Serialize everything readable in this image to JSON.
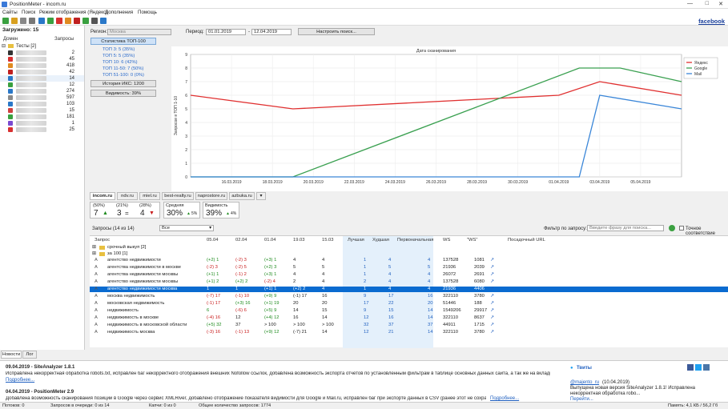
{
  "window": {
    "title": "PositionMeter - incom.ru"
  },
  "menu": [
    "Сайты",
    "Поиск",
    "Режим отображения (Яндекс)",
    "Дополнения",
    "Помощь"
  ],
  "facebook_link": "facebook",
  "left": {
    "header": "Загружено: 15",
    "col_domain": "Домен",
    "col_queries": "Запросы",
    "group": "Тесты [2]",
    "rows": [
      {
        "count": "2",
        "color": "#333333"
      },
      {
        "count": "45",
        "color": "#d83030"
      },
      {
        "count": "418",
        "color": "#e08a20"
      },
      {
        "count": "42",
        "color": "#c02020"
      },
      {
        "count": "14",
        "color": "#2a78c8"
      },
      {
        "count": "12",
        "color": "#3aa040"
      },
      {
        "count": "274",
        "color": "#2a78c8"
      },
      {
        "count": "597",
        "color": "#8a8a8a"
      },
      {
        "count": "103",
        "color": "#2a78c8"
      },
      {
        "count": "15",
        "color": "#d04040"
      },
      {
        "count": "181",
        "color": "#3aa040"
      },
      {
        "count": "1",
        "color": "#7a4ad0"
      },
      {
        "count": "25",
        "color": "#d83030"
      }
    ]
  },
  "filters": {
    "region_label": "Регион:",
    "region_value": "Москва",
    "period_label": "Период:",
    "date_from": "01.01.2019",
    "date_to": "12.04.2019",
    "setup_button": "Настроить поиск..."
  },
  "stats": {
    "top100_button": "Статистика ТОП-100",
    "lines": [
      "ТОП 3: 5 (35%)",
      "ТОП 5: 5 (35%)",
      "ТОП 10: 6 (42%)",
      "ТОП 11-50: 7 (50%)",
      "ТОП 51-100: 0 (0%)"
    ],
    "iks_button": "История ИКС: 1200",
    "visibility_button": "Видимость: 39%"
  },
  "chart_data": {
    "type": "line",
    "title": "Дата сканирования",
    "ylabel": "Запросов в ТОП 1-10",
    "ylim": [
      0,
      9
    ],
    "yticks": [
      0,
      1,
      2,
      3,
      4,
      5,
      6,
      7,
      8,
      9
    ],
    "categories": [
      "16.03.2019",
      "18.03.2019",
      "20.03.2019",
      "22.03.2019",
      "24.03.2019",
      "26.03.2019",
      "28.03.2019",
      "30.03.2019",
      "01.04.2019",
      "03.04.2019",
      "05.04.2019"
    ],
    "x_days": [
      0,
      2,
      4,
      6,
      8,
      10,
      12,
      14,
      16,
      18,
      20
    ],
    "series": [
      {
        "name": "Яндекс",
        "color": "#e03030",
        "points": [
          [
            -2,
            6
          ],
          [
            3,
            5
          ],
          [
            16,
            6
          ],
          [
            18,
            7
          ],
          [
            22,
            6
          ]
        ]
      },
      {
        "name": "Google",
        "color": "#3aa050",
        "points": [
          [
            -2,
            0
          ],
          [
            3,
            0
          ],
          [
            17,
            8
          ],
          [
            19,
            8
          ],
          [
            22,
            7
          ]
        ]
      },
      {
        "name": "Mail",
        "color": "#3a86d8",
        "points": [
          [
            -2,
            0
          ],
          [
            17,
            0
          ],
          [
            18,
            6
          ],
          [
            22,
            5
          ]
        ]
      }
    ],
    "legend": "top-right"
  },
  "site_tabs": [
    "incom.ru",
    "ndv.ru",
    "miel.ru",
    "best-realty.ru",
    "naprostore.ru",
    "azbuka.ru"
  ],
  "metrics": {
    "box1": {
      "a_label": "(50%)",
      "a_val": "7",
      "b_label": "(21%)",
      "b_val": "3",
      "c_label": "(28%)",
      "c_val": "4"
    },
    "avg_label": "Средняя",
    "avg_val": "30%",
    "avg_change": "5%",
    "vis_label": "Видимость",
    "vis_val": "39%",
    "vis_change": "4%"
  },
  "query_bar": {
    "count_label": "Запросы (14 из 14)",
    "select_value": "Все",
    "filter_label": "Фильтр по запросу:",
    "filter_placeholder": "Введите фразу для поиска...",
    "exact_label": "Точное соответствие"
  },
  "grid": {
    "headers": [
      "Запрос",
      "05.04",
      "02.04",
      "01.04",
      "19.03",
      "15.03",
      "Лучшая",
      "Худшая",
      "Первоначальная",
      "WS",
      "\"WS\"",
      "Посадочный URL"
    ],
    "groups": [
      "срочный выкуп [2]",
      "за 100 [1]"
    ],
    "rows": [
      {
        "q": "агентство недвижимости",
        "d1": "(+2) 1",
        "d2": "(-2) 3",
        "d3": "(+3) 1",
        "d4": "4",
        "d5": "4",
        "best": "1",
        "worst": "4",
        "init": "4",
        "ws": "137528",
        "ws2": "1081",
        "c1": "g",
        "c2": "r",
        "c3": "g"
      },
      {
        "q": "агентства недвижимости в москве",
        "d1": "(-2) 3",
        "d2": "(-2) 5",
        "d3": "(+2) 3",
        "d4": "5",
        "d5": "5",
        "best": "1",
        "worst": "5",
        "init": "5",
        "ws": "21936",
        "ws2": "2039",
        "c1": "r",
        "c2": "r",
        "c3": "g"
      },
      {
        "q": "агентства недвижимости москвы",
        "d1": "(+1) 1",
        "d2": "(-1) 2",
        "d3": "(+3) 1",
        "d4": "4",
        "d5": "4",
        "best": "1",
        "worst": "4",
        "init": "4",
        "ws": "26072",
        "ws2": "2691",
        "c1": "g",
        "c2": "r",
        "c3": "g"
      },
      {
        "q": "агентство недвижимости москвы",
        "d1": "(+1) 2",
        "d2": "(+2) 2",
        "d3": "(-2) 4",
        "d4": "2",
        "d5": "4",
        "best": "2",
        "worst": "4",
        "init": "4",
        "ws": "137528",
        "ws2": "6080",
        "c1": "g",
        "c2": "g",
        "c3": "r"
      },
      {
        "q": "агентство недвижимости москва",
        "d1": "1",
        "d2": "1",
        "d3": "(+1) 1",
        "d4": "(+2) 2",
        "d5": "4",
        "best": "1",
        "worst": "4",
        "init": "4",
        "ws": "21936",
        "ws2": "4406",
        "sel": true
      },
      {
        "q": "москва недвижимость",
        "d1": "(-7) 17",
        "d2": "(-1) 10",
        "d3": "(+9) 9",
        "d4": "(-1) 17",
        "d5": "16",
        "best": "9",
        "worst": "17",
        "init": "16",
        "ws": "322110",
        "ws2": "3780",
        "c1": "r",
        "c2": "r",
        "c3": "g"
      },
      {
        "q": "московская недвижимость",
        "d1": "(-1) 17",
        "d2": "(+3) 16",
        "d3": "(+1) 19",
        "d4": "20",
        "d5": "20",
        "best": "17",
        "worst": "22",
        "init": "20",
        "ws": "51446",
        "ws2": "188",
        "c1": "r",
        "c2": "g",
        "c3": "g"
      },
      {
        "q": "недвижимость",
        "d1": "6",
        "d2": "(-6) 6",
        "d3": "(+5) 9",
        "d4": "14",
        "d5": "15",
        "best": "9",
        "worst": "15",
        "init": "14",
        "ws": "1549206",
        "ws2": "29917",
        "c1": "g",
        "c2": "r",
        "c3": "g"
      },
      {
        "q": "недвижимость в москве",
        "d1": "(-4) 16",
        "d2": "12",
        "d3": "(+4) 12",
        "d4": "16",
        "d5": "14",
        "best": "12",
        "worst": "16",
        "init": "14",
        "ws": "322110",
        "ws2": "8637",
        "c1": "r",
        "c2": "",
        "c3": "g"
      },
      {
        "q": "недвижимость в московской области",
        "d1": "(+5) 32",
        "d2": "37",
        "d3": "> 100",
        "d4": "> 100",
        "d5": "> 100",
        "best": "32",
        "worst": "37",
        "init": "37",
        "ws": "44911",
        "ws2": "1715",
        "c1": "g",
        "c2": "",
        "c3": ""
      },
      {
        "q": "недвижимость москва",
        "d1": "(-3) 16",
        "d2": "(-1) 13",
        "d3": "(+9) 12",
        "d4": "(-7) 21",
        "d5": "14",
        "best": "12",
        "worst": "21",
        "init": "14",
        "ws": "322110",
        "ws2": "3780",
        "c1": "r",
        "c2": "r",
        "c3": "g"
      }
    ]
  },
  "bottom_tabs": [
    "Новости",
    "Лог"
  ],
  "news": [
    {
      "head": "09.04.2019 - SiteAnalyzer 1.8.1",
      "body": "Исправлена некорректная обработка robots.txt, исправлен баг некорректного отображения внешних Nofollow ссылок, добавлена возможность экспорта отчетов по установленным фильтрам в таблице основных данных сайта, а так же на вкладке Инфо...",
      "more": "Подробнее..."
    },
    {
      "head": "04.04.2019 - PositionMeter 2.9",
      "body": "Добавлена возможность сканирования позиций в Google через сервис XMLRiver, добавлено отображение показателя видимости для Google и Mail.ru, исправлен баг при экспорте данных в CSV (ранее этот не сохранялся)...",
      "more": "Подробнее..."
    }
  ],
  "tweets": {
    "title": "Твиты",
    "handle": "@majento_ru",
    "date": "(10.04.2019)",
    "text": "Выпущена новая версия SiteAnalyzer 1.8.1! Исправлена некорректная обработка robo...",
    "more": "Перейти..."
  },
  "status": {
    "updates": "Потоков: 0",
    "queue": "Запросов в очереди: 0 из 14",
    "captcha": "Капчи: 0 из 0",
    "total": "Общее количество запросов: 1774",
    "memory": "Память: 4,1 КБ / 56,2 Гб"
  }
}
